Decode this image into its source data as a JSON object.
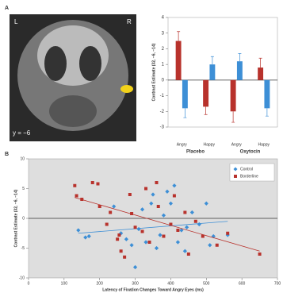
{
  "brain_image": {
    "panel_label": "A",
    "left": "L",
    "right": "R",
    "slice": "y = −6"
  },
  "chart_data": [
    {
      "type": "bar",
      "y_label": "Contrast Estimate (32, −6, −14)",
      "categories": [
        "Angry",
        "Happy",
        "Angry",
        "Happy"
      ],
      "groups": [
        "Placebo",
        "Oxytocin"
      ],
      "series": [
        {
          "color": "#b8322c",
          "values": [
            2.5,
            -1.7,
            -2.0,
            0.8
          ],
          "errors": [
            0.6,
            0.5,
            0.7,
            0.6
          ]
        },
        {
          "color": "#3d8fd6",
          "values": [
            -1.8,
            1.0,
            1.2,
            -1.8
          ],
          "errors": [
            0.6,
            0.5,
            0.5,
            0.5
          ]
        }
      ],
      "ylim": [
        -3,
        4
      ],
      "yticks": [
        -3,
        -2,
        -1,
        0,
        1,
        2,
        3,
        4
      ]
    },
    {
      "type": "scatter",
      "panel_label": "B",
      "x_label": "Latency of Fixation Changes Toward Angry Eyes (ms)",
      "y_label": "Contrast Estimate (32, −6, −14)",
      "xlim": [
        0,
        700
      ],
      "xticks": [
        0,
        100,
        200,
        300,
        400,
        500,
        600,
        700
      ],
      "ylim": [
        -10,
        10
      ],
      "yticks": [
        -10,
        -5,
        0,
        5,
        10
      ],
      "legend": "top-right",
      "series": [
        {
          "name": "Control",
          "color": "#3d8fd6",
          "marker": "diamond",
          "x": [
            140,
            160,
            170,
            240,
            260,
            275,
            290,
            300,
            310,
            320,
            330,
            345,
            350,
            360,
            370,
            380,
            390,
            400,
            410,
            420,
            430,
            440,
            445,
            460,
            480,
            500,
            510,
            520,
            560
          ],
          "values": [
            -2,
            -3.2,
            -3,
            2,
            -2.5,
            -3.5,
            -4.5,
            -8.2,
            -1.8,
            1.5,
            -4,
            2.5,
            4,
            -5,
            -2.8,
            0.5,
            4.5,
            2.5,
            5.5,
            -4,
            -2,
            -5.5,
            -1.5,
            1,
            -1,
            2.5,
            -4.5,
            -3,
            -2.8
          ],
          "trend": {
            "x": [
              140,
              560
            ],
            "y": [
              -2.5,
              -0.5
            ]
          }
        },
        {
          "name": "Borderline",
          "color": "#b8322c",
          "marker": "square",
          "x": [
            130,
            135,
            150,
            180,
            195,
            200,
            220,
            230,
            250,
            255,
            260,
            270,
            285,
            290,
            300,
            320,
            330,
            340,
            360,
            365,
            380,
            400,
            410,
            420,
            440,
            450,
            470,
            490,
            530,
            560,
            650
          ],
          "values": [
            5.5,
            3.8,
            3.2,
            6,
            5.8,
            2,
            -1,
            1,
            -3.5,
            -2.8,
            -5.5,
            -6.5,
            4,
            0.8,
            -1.5,
            -2.2,
            5,
            -4,
            6,
            2,
            -3,
            -1,
            3.8,
            -2,
            1,
            -6,
            -0.5,
            -3,
            -4.5,
            -2.5,
            -6
          ],
          "trend": {
            "x": [
              130,
              650
            ],
            "y": [
              3.5,
              -5.5
            ]
          }
        }
      ]
    }
  ]
}
